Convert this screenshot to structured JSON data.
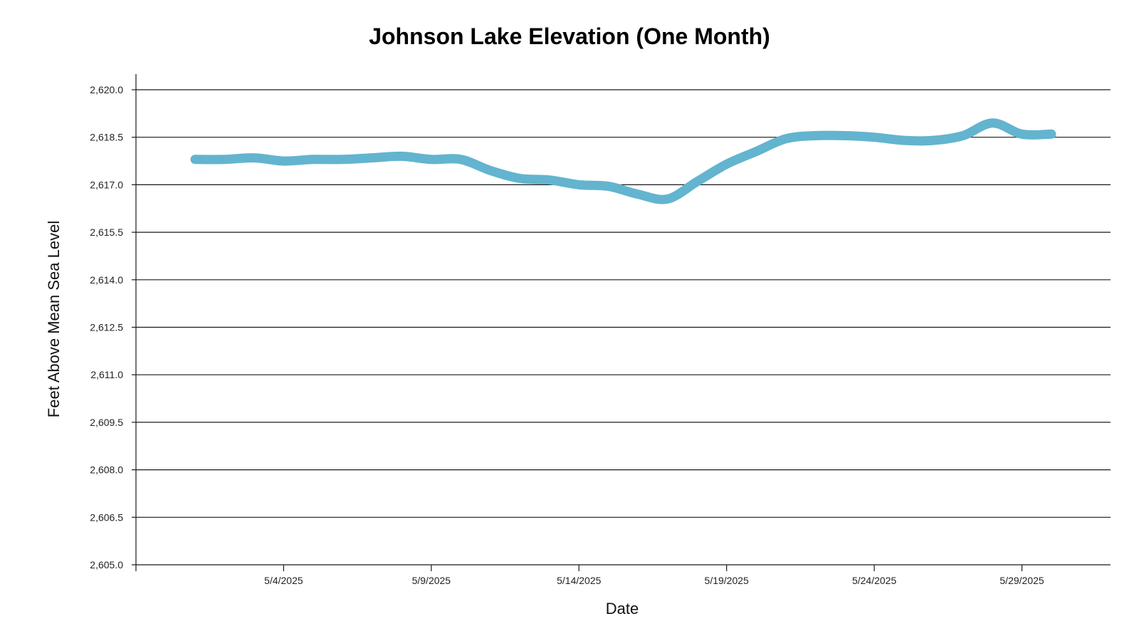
{
  "chart_data": {
    "type": "line",
    "title": "Johnson Lake Elevation (One Month)",
    "xlabel": "Date",
    "ylabel": "Feet Above Mean Sea Level",
    "ylim": [
      2605.0,
      2620.0
    ],
    "y_ticks": [
      2605.0,
      2606.5,
      2608.0,
      2609.5,
      2611.0,
      2612.5,
      2614.0,
      2615.5,
      2617.0,
      2618.5,
      2620.0
    ],
    "y_tick_labels": [
      "2,605.0",
      "2,606.5",
      "2,608.0",
      "2,609.5",
      "2,611.0",
      "2,612.5",
      "2,614.0",
      "2,615.5",
      "2,617.0",
      "2,618.5",
      "2,620.0"
    ],
    "x_range": [
      "2025-04-29",
      "2025-06-01"
    ],
    "x_ticks": [
      "2025-05-04",
      "2025-05-09",
      "2025-05-14",
      "2025-05-19",
      "2025-05-24",
      "2025-05-29"
    ],
    "x_tick_labels": [
      "5/4/2025",
      "5/9/2025",
      "5/14/2025",
      "5/19/2025",
      "5/24/2025",
      "5/29/2025"
    ],
    "grid": "horizontal",
    "series_color": "#63b4cf",
    "series": [
      {
        "x": [
          "2025-05-01",
          "2025-05-02",
          "2025-05-03",
          "2025-05-04",
          "2025-05-05",
          "2025-05-06",
          "2025-05-07",
          "2025-05-08",
          "2025-05-09",
          "2025-05-10",
          "2025-05-11",
          "2025-05-12",
          "2025-05-13",
          "2025-05-14",
          "2025-05-15",
          "2025-05-16",
          "2025-05-17",
          "2025-05-18",
          "2025-05-19",
          "2025-05-20",
          "2025-05-21",
          "2025-05-22",
          "2025-05-23",
          "2025-05-24",
          "2025-05-25",
          "2025-05-26",
          "2025-05-27",
          "2025-05-28",
          "2025-05-29",
          "2025-05-30"
        ],
        "y": [
          2617.8,
          2617.8,
          2617.85,
          2617.75,
          2617.8,
          2617.8,
          2617.85,
          2617.9,
          2617.8,
          2617.8,
          2617.45,
          2617.2,
          2617.15,
          2617.0,
          2616.95,
          2616.7,
          2616.55,
          2617.1,
          2617.65,
          2618.05,
          2618.45,
          2618.55,
          2618.55,
          2618.5,
          2618.4,
          2618.4,
          2618.55,
          2618.95,
          2618.6,
          2618.6
        ]
      }
    ]
  }
}
